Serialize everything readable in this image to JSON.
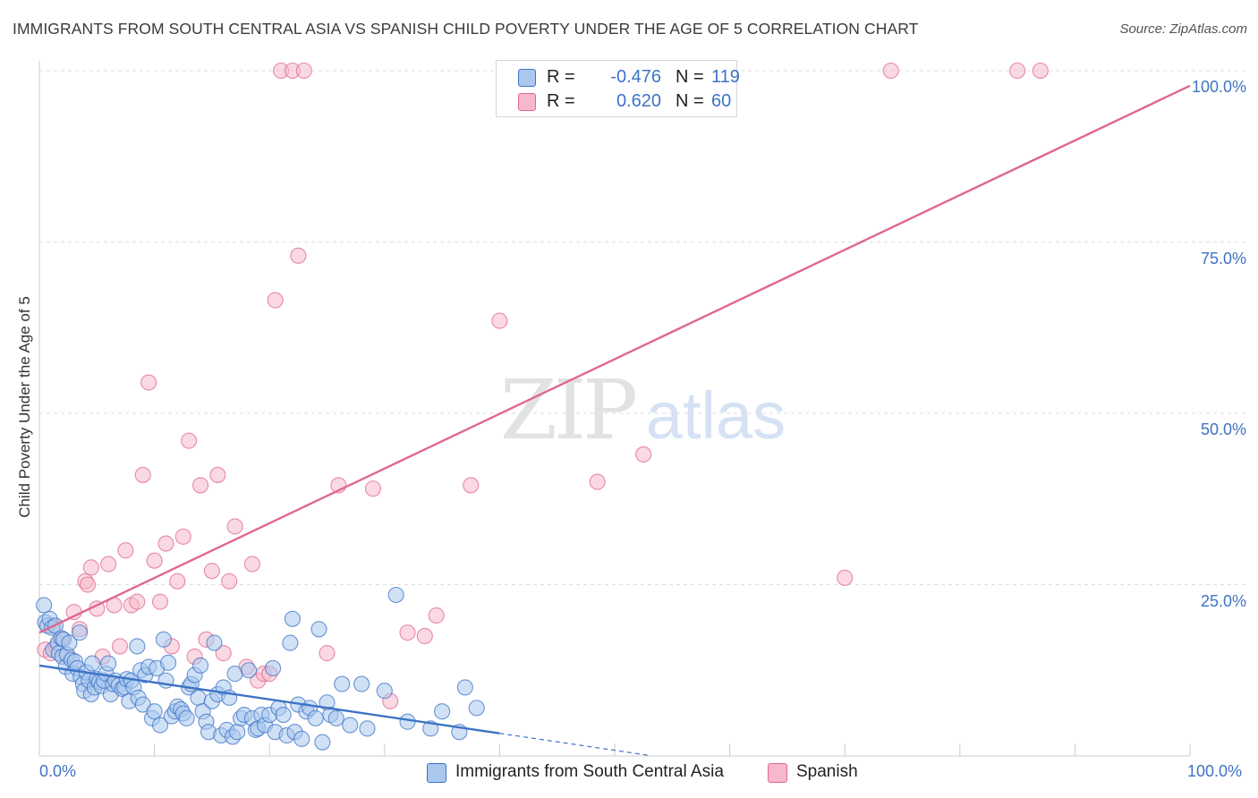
{
  "header": {
    "title": "IMMIGRANTS FROM SOUTH CENTRAL ASIA VS SPANISH CHILD POVERTY UNDER THE AGE OF 5 CORRELATION CHART",
    "source": "Source: ZipAtlas.com"
  },
  "watermark": {
    "zip": "ZIP",
    "atlas": "atlas"
  },
  "legend_top": {
    "rows": [
      {
        "r_label": "R =",
        "r_value": "-0.476",
        "n_label": "N =",
        "n_value": "119"
      },
      {
        "r_label": "R =",
        "r_value": "0.620",
        "n_label": "N =",
        "n_value": "60"
      }
    ]
  },
  "chart_data": {
    "type": "scatter",
    "title": "IMMIGRANTS FROM SOUTH CENTRAL ASIA VS SPANISH CHILD POVERTY UNDER THE AGE OF 5 CORRELATION CHART",
    "xlabel": "",
    "ylabel": "Child Poverty Under the Age of 5",
    "xlim": [
      0,
      100
    ],
    "ylim": [
      0,
      100
    ],
    "x_tick_labels": [
      "0.0%",
      "100.0%"
    ],
    "y_tick_labels": [
      "25.0%",
      "50.0%",
      "75.0%",
      "100.0%"
    ],
    "y_ticks": [
      25,
      50,
      75,
      100
    ],
    "grid": true,
    "legend_position": "bottom",
    "colors": {
      "blue": "#3d73c5",
      "blue_fill": "#aac8ee",
      "pink": "#e0678f",
      "pink_fill": "#f5b9cb"
    },
    "series": [
      {
        "name": "Immigrants from South Central Asia",
        "color": "#3d73c5",
        "fill": "#aac8ee",
        "r": -0.476,
        "n": 119,
        "trend": {
          "x0": 0,
          "y0": 13.2,
          "x1": 40,
          "y1": 3.3,
          "dash_to_x": 53
        },
        "points": [
          [
            0.4,
            22.0
          ],
          [
            0.5,
            19.5
          ],
          [
            0.7,
            19.0
          ],
          [
            0.9,
            20.0
          ],
          [
            1.1,
            18.7
          ],
          [
            1.2,
            15.5
          ],
          [
            1.4,
            19.0
          ],
          [
            1.6,
            16.5
          ],
          [
            1.7,
            15.0
          ],
          [
            1.9,
            17.2
          ],
          [
            2.0,
            14.5
          ],
          [
            2.1,
            17.0
          ],
          [
            2.3,
            13.0
          ],
          [
            2.4,
            14.8
          ],
          [
            2.6,
            16.5
          ],
          [
            2.8,
            14.0
          ],
          [
            2.9,
            12.0
          ],
          [
            3.1,
            13.8
          ],
          [
            3.3,
            12.8
          ],
          [
            3.5,
            18.0
          ],
          [
            3.6,
            11.5
          ],
          [
            3.8,
            10.5
          ],
          [
            3.9,
            9.5
          ],
          [
            4.1,
            12.2
          ],
          [
            4.3,
            11.0
          ],
          [
            4.5,
            9.0
          ],
          [
            4.6,
            13.5
          ],
          [
            4.8,
            10.0
          ],
          [
            5.0,
            11.2
          ],
          [
            5.2,
            10.8
          ],
          [
            5.4,
            10.2
          ],
          [
            5.6,
            11.0
          ],
          [
            5.8,
            12.0
          ],
          [
            6.0,
            13.5
          ],
          [
            6.2,
            9.0
          ],
          [
            6.4,
            10.5
          ],
          [
            6.6,
            11.0
          ],
          [
            6.9,
            10.3
          ],
          [
            7.2,
            9.8
          ],
          [
            7.4,
            10.0
          ],
          [
            7.6,
            11.2
          ],
          [
            7.8,
            8.0
          ],
          [
            8.0,
            11.0
          ],
          [
            8.2,
            10.0
          ],
          [
            8.5,
            16.0
          ],
          [
            8.6,
            8.5
          ],
          [
            8.8,
            12.5
          ],
          [
            9.0,
            7.5
          ],
          [
            9.2,
            11.8
          ],
          [
            9.5,
            13.0
          ],
          [
            9.8,
            5.5
          ],
          [
            10.0,
            6.5
          ],
          [
            10.2,
            12.8
          ],
          [
            10.5,
            4.5
          ],
          [
            10.8,
            17.0
          ],
          [
            11.0,
            11.0
          ],
          [
            11.2,
            13.6
          ],
          [
            11.5,
            5.8
          ],
          [
            11.8,
            6.5
          ],
          [
            12.0,
            7.2
          ],
          [
            12.3,
            6.8
          ],
          [
            12.5,
            6.2
          ],
          [
            12.8,
            5.5
          ],
          [
            13.0,
            10.0
          ],
          [
            13.2,
            10.5
          ],
          [
            13.5,
            11.8
          ],
          [
            13.8,
            8.5
          ],
          [
            14.0,
            13.2
          ],
          [
            14.2,
            6.5
          ],
          [
            14.5,
            5.0
          ],
          [
            14.7,
            3.5
          ],
          [
            15.0,
            8.0
          ],
          [
            15.2,
            16.5
          ],
          [
            15.5,
            9.0
          ],
          [
            15.8,
            3.0
          ],
          [
            16.0,
            10.0
          ],
          [
            16.3,
            3.8
          ],
          [
            16.5,
            8.5
          ],
          [
            16.8,
            2.8
          ],
          [
            17.0,
            12.0
          ],
          [
            17.2,
            3.5
          ],
          [
            17.5,
            5.5
          ],
          [
            17.8,
            6.0
          ],
          [
            18.2,
            12.5
          ],
          [
            18.5,
            5.5
          ],
          [
            18.8,
            3.8
          ],
          [
            19.0,
            4.0
          ],
          [
            19.3,
            6.0
          ],
          [
            19.6,
            4.5
          ],
          [
            20.0,
            6.0
          ],
          [
            20.3,
            12.8
          ],
          [
            20.5,
            3.5
          ],
          [
            20.8,
            7.0
          ],
          [
            21.2,
            6.0
          ],
          [
            21.5,
            3.0
          ],
          [
            21.8,
            16.5
          ],
          [
            22.0,
            20.0
          ],
          [
            22.2,
            3.5
          ],
          [
            22.5,
            7.5
          ],
          [
            22.8,
            2.5
          ],
          [
            23.2,
            6.5
          ],
          [
            23.5,
            7.0
          ],
          [
            24.0,
            5.5
          ],
          [
            24.3,
            18.5
          ],
          [
            24.6,
            2.0
          ],
          [
            25.0,
            7.8
          ],
          [
            25.3,
            6.0
          ],
          [
            25.8,
            5.5
          ],
          [
            26.3,
            10.5
          ],
          [
            27.0,
            4.5
          ],
          [
            28.0,
            10.5
          ],
          [
            28.5,
            4.0
          ],
          [
            30.0,
            9.5
          ],
          [
            31.0,
            23.5
          ],
          [
            32.0,
            5.0
          ],
          [
            34.0,
            4.0
          ],
          [
            35.0,
            6.5
          ],
          [
            36.5,
            3.5
          ],
          [
            37.0,
            10.0
          ],
          [
            38.0,
            7.0
          ]
        ]
      },
      {
        "name": "Spanish",
        "color": "#e0678f",
        "fill": "#f5b9cb",
        "r": 0.62,
        "n": 60,
        "trend": {
          "x0": 0,
          "y0": 18.0,
          "x1": 100,
          "y1": 97.8
        },
        "points": [
          [
            0.5,
            15.5
          ],
          [
            1.0,
            15.0
          ],
          [
            1.2,
            19.0
          ],
          [
            1.5,
            16.0
          ],
          [
            2.0,
            17.0
          ],
          [
            2.5,
            14.5
          ],
          [
            3.0,
            21.0
          ],
          [
            3.5,
            18.5
          ],
          [
            4.0,
            25.5
          ],
          [
            4.2,
            25.0
          ],
          [
            4.5,
            27.5
          ],
          [
            5.0,
            21.5
          ],
          [
            5.5,
            14.5
          ],
          [
            6.0,
            28.0
          ],
          [
            6.5,
            22.0
          ],
          [
            7.0,
            16.0
          ],
          [
            7.5,
            30.0
          ],
          [
            8.0,
            22.0
          ],
          [
            8.5,
            22.5
          ],
          [
            9.0,
            41.0
          ],
          [
            9.5,
            54.5
          ],
          [
            10.0,
            28.5
          ],
          [
            10.5,
            22.5
          ],
          [
            11.0,
            31.0
          ],
          [
            11.5,
            16.0
          ],
          [
            12.0,
            25.5
          ],
          [
            12.5,
            32.0
          ],
          [
            13.0,
            46.0
          ],
          [
            13.5,
            14.5
          ],
          [
            14.0,
            39.5
          ],
          [
            14.5,
            17.0
          ],
          [
            15.0,
            27.0
          ],
          [
            15.5,
            41.0
          ],
          [
            16.0,
            15.0
          ],
          [
            16.5,
            25.5
          ],
          [
            17.0,
            33.5
          ],
          [
            18.0,
            13.0
          ],
          [
            18.5,
            28.0
          ],
          [
            19.0,
            11.0
          ],
          [
            19.5,
            12.0
          ],
          [
            20.0,
            12.0
          ],
          [
            20.5,
            66.5
          ],
          [
            21.0,
            100
          ],
          [
            22.0,
            100
          ],
          [
            22.5,
            73.0
          ],
          [
            23.0,
            100
          ],
          [
            25.0,
            15.0
          ],
          [
            26.0,
            39.5
          ],
          [
            29.0,
            39.0
          ],
          [
            30.5,
            8.0
          ],
          [
            32.0,
            18.0
          ],
          [
            33.5,
            17.5
          ],
          [
            34.5,
            20.5
          ],
          [
            37.5,
            39.5
          ],
          [
            40.0,
            63.5
          ],
          [
            48.5,
            40.0
          ],
          [
            52.5,
            44.0
          ],
          [
            55.0,
            100
          ],
          [
            70.0,
            26.0
          ],
          [
            74.0,
            100
          ],
          [
            85.0,
            100
          ],
          [
            87.0,
            100
          ]
        ]
      }
    ]
  },
  "legend_bottom": [
    {
      "label": "Immigrants from South Central Asia"
    },
    {
      "label": "Spanish"
    }
  ]
}
